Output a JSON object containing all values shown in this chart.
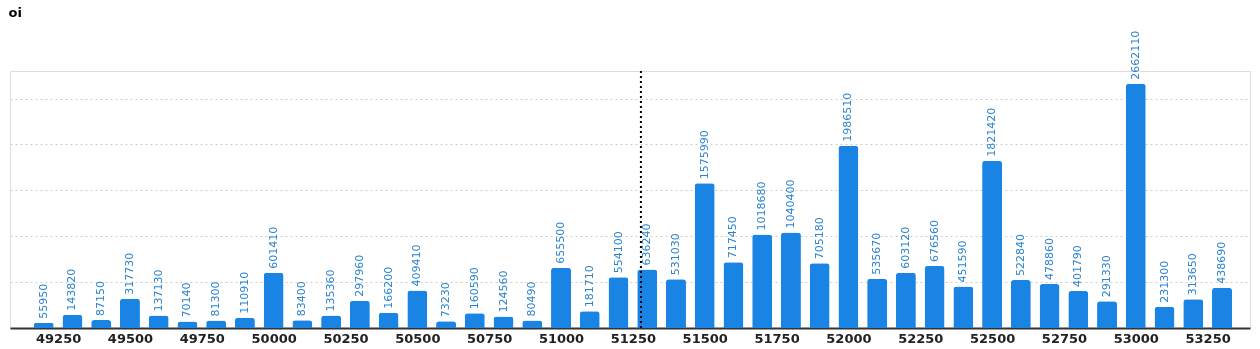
{
  "chart_data": {
    "type": "bar",
    "ylabel": "oi",
    "x": [
      49200,
      49300,
      49400,
      49500,
      49600,
      49700,
      49800,
      49900,
      50000,
      50100,
      50200,
      50300,
      50400,
      50500,
      50600,
      50700,
      50800,
      50900,
      51000,
      51100,
      51200,
      51300,
      51400,
      51500,
      51600,
      51700,
      51800,
      51900,
      52000,
      52100,
      52200,
      52300,
      52400,
      52500,
      52600,
      52700,
      52800,
      52900,
      53000,
      53100,
      53200,
      53300
    ],
    "values": [
      55950,
      143820,
      87150,
      317730,
      137130,
      70140,
      81300,
      110910,
      601410,
      83400,
      135360,
      297960,
      166200,
      409410,
      73230,
      160590,
      124560,
      80490,
      655500,
      181710,
      554100,
      636240,
      531030,
      1575990,
      717450,
      1018680,
      1040400,
      705180,
      1986510,
      535670,
      603120,
      676560,
      451590,
      1821420,
      522840,
      478860,
      401790,
      291330,
      2662110,
      231300,
      313650,
      438690
    ],
    "color": "#1a84e5",
    "data_labels": true,
    "xlim": [
      49100,
      53380
    ],
    "xticks": [
      49250,
      49500,
      49750,
      50000,
      50250,
      50500,
      50750,
      51000,
      51250,
      51500,
      51750,
      52000,
      52250,
      52500,
      52750,
      53000,
      53250
    ],
    "ylim": [
      0,
      2800000
    ],
    "yticks": [
      {
        "value": 0,
        "label": null
      },
      {
        "value": 500000,
        "label": null
      },
      {
        "value": 1000000,
        "label": null
      },
      {
        "value": 1500000,
        "label": null
      },
      {
        "value": 2000000,
        "label": null
      },
      {
        "value": 2500000,
        "label": null
      }
    ],
    "tick_labels": "x",
    "grid": "y",
    "ref_lines": [
      {
        "axis": "x",
        "value": 51278,
        "line_style": "dotted",
        "color": "#000000"
      }
    ]
  }
}
